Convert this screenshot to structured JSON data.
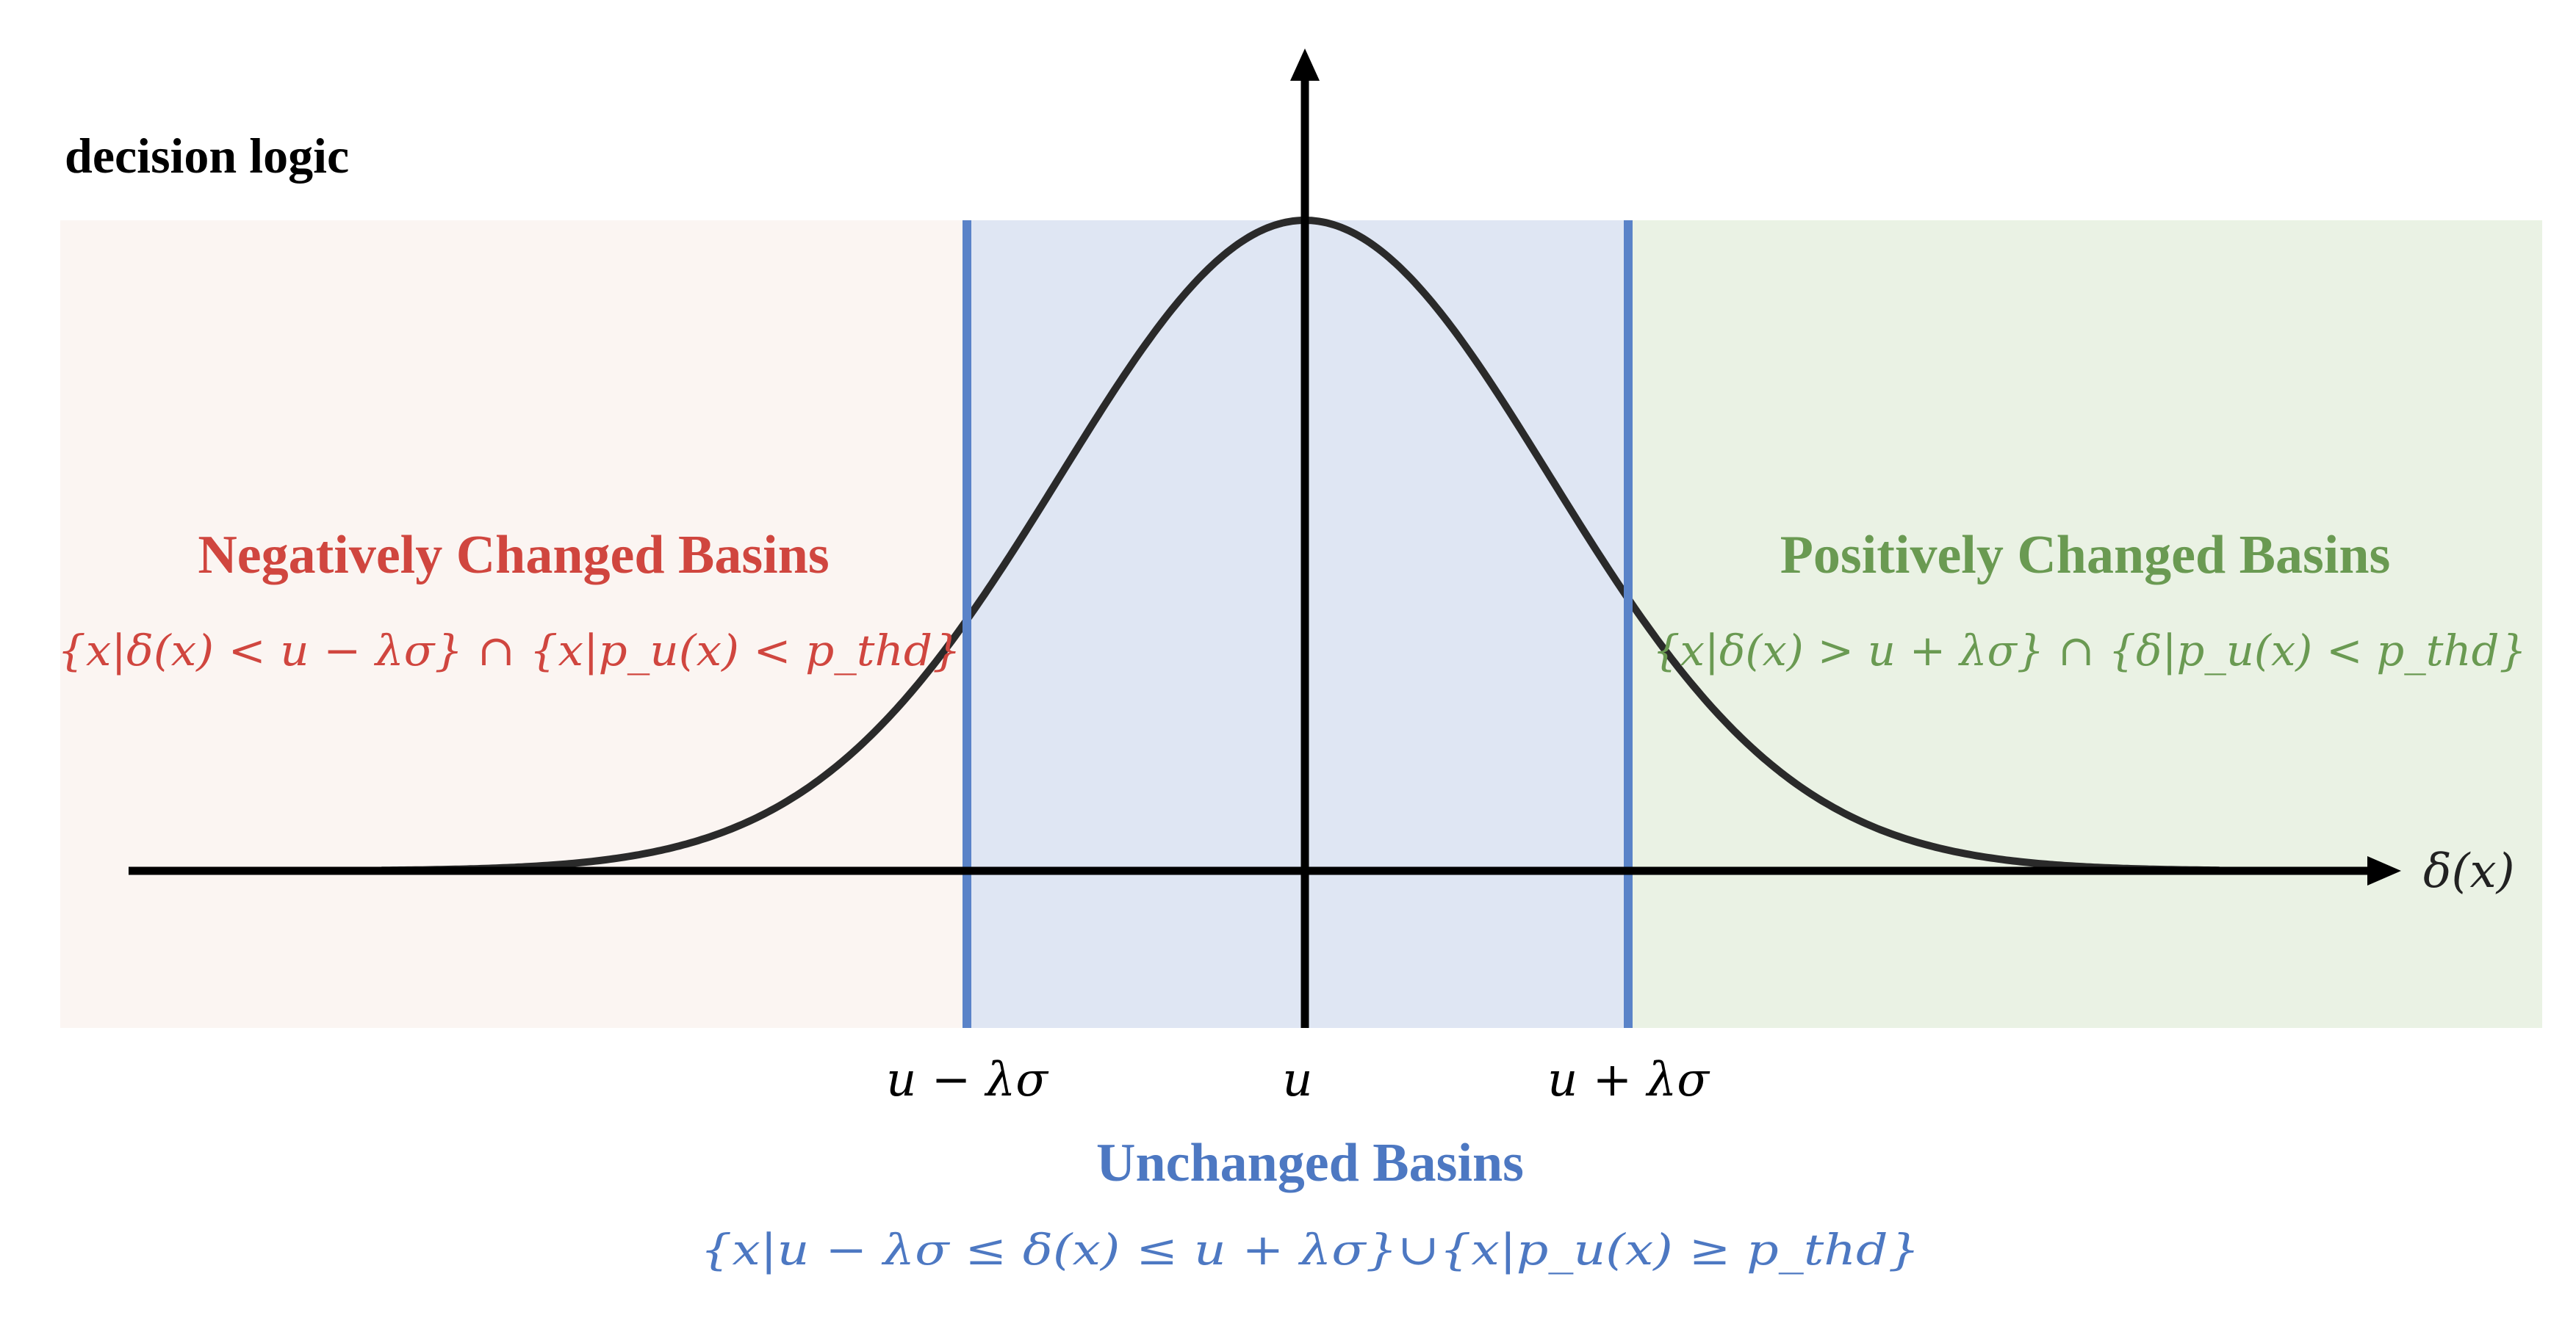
{
  "title": "decision logic",
  "colors": {
    "negative_bg": "#fbf5f2",
    "unchanged_bg": "#dfe6f3",
    "positive_bg": "#eaf2e4",
    "negative_text": "#d0463f",
    "unchanged_text": "#4d78c2",
    "positive_text": "#6a9a52",
    "boundary_line": "#5a83c8",
    "axis": "#000000",
    "curve": "#2a2a2a"
  },
  "regions": {
    "negative": {
      "title": "Negatively Changed Basins",
      "formula": "{x|δ(x) < u − λσ} ∩ {x|p_u(x) < p_thd}"
    },
    "positive": {
      "title": "Positively Changed Basins",
      "formula": "{x|δ(x) > u + λσ} ∩ {δ|p_u(x) < p_thd}"
    },
    "unchanged": {
      "title": "Unchanged Basins",
      "formula": "{x|u − λσ ≤ δ(x) ≤ u + λσ}∪{x|p_u(x) ≥ p_thd}"
    }
  },
  "ticks": {
    "left": "u − λσ",
    "center": "u",
    "right": "u + λσ"
  },
  "x_axis_label": "δ(x)"
}
